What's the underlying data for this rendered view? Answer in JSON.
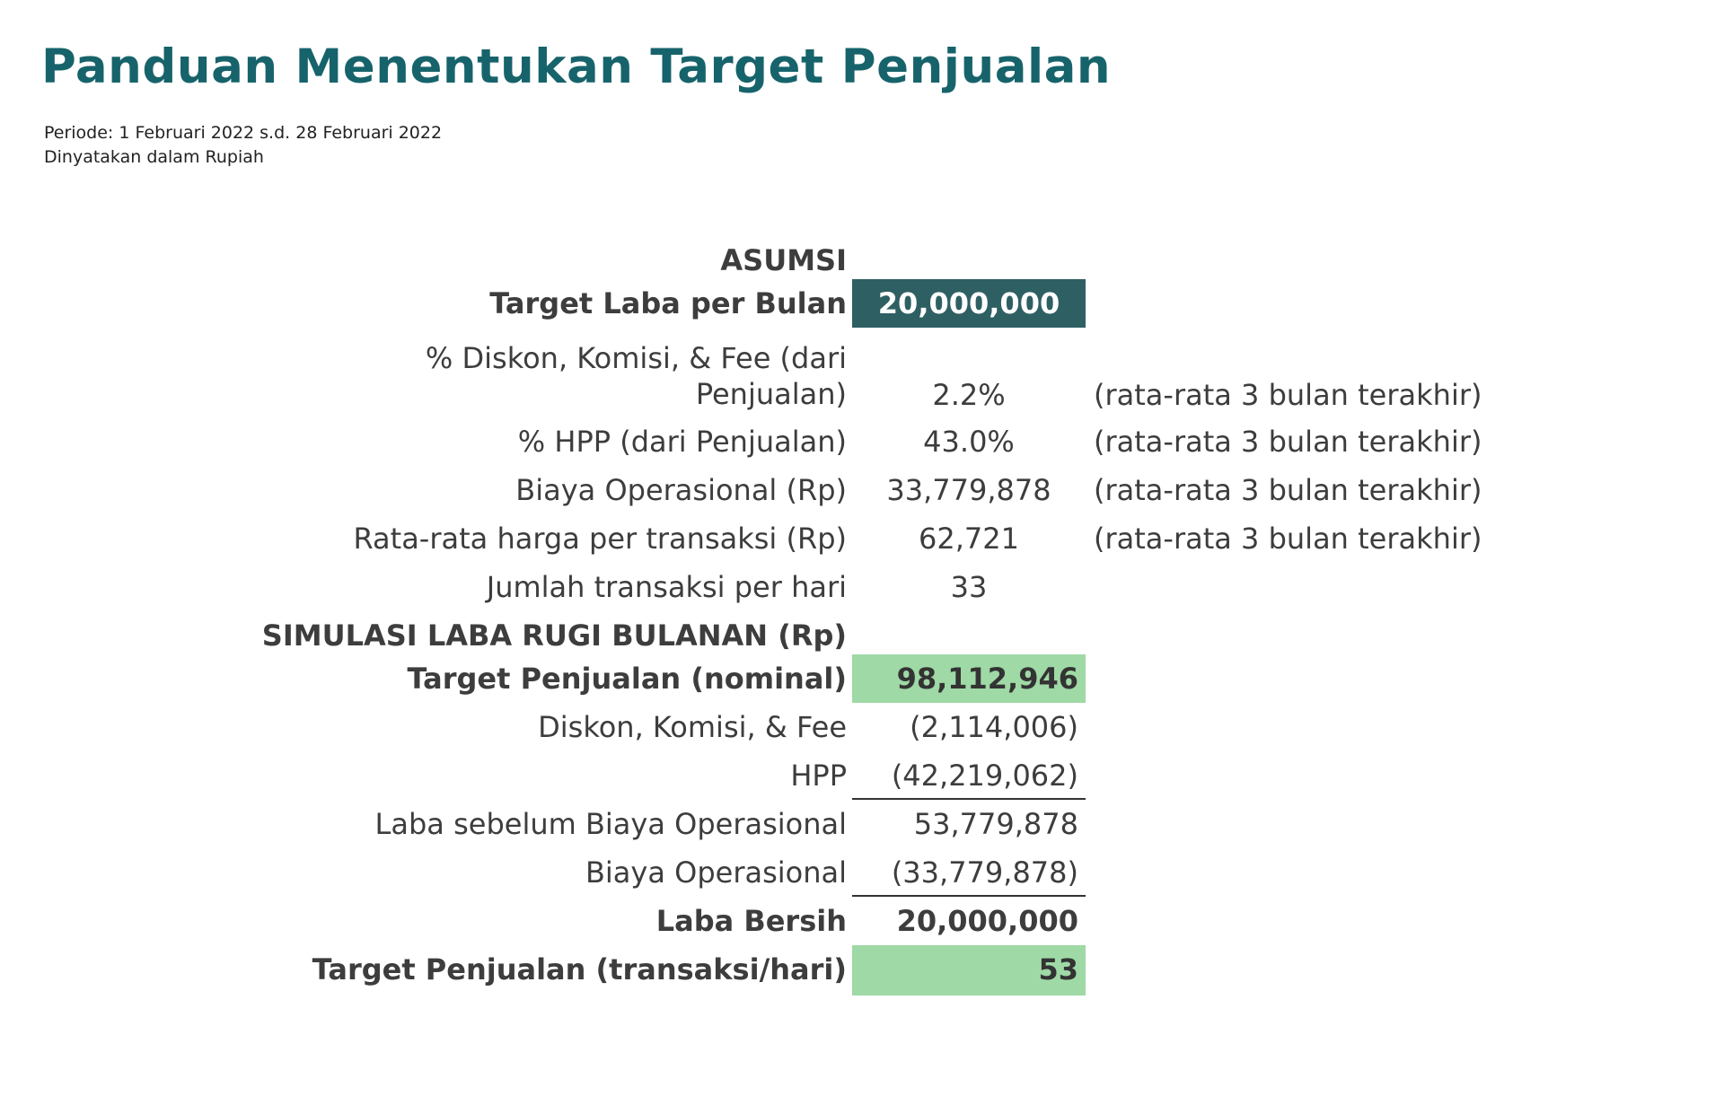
{
  "header": {
    "title": "Panduan Menentukan Target Penjualan",
    "period": "Periode: 1 Februari 2022 s.d. 28 Februari 2022",
    "currency_note": "Dinyatakan dalam Rupiah"
  },
  "asumsi": {
    "section_title": "ASUMSI",
    "target_laba": {
      "label": "Target Laba per Bulan",
      "value": "20,000,000"
    },
    "diskon": {
      "label_line1": "% Diskon, Komisi, & Fee (dari",
      "label_line2": "Penjualan)",
      "value": "2.2%",
      "note": "(rata-rata 3 bulan terakhir)"
    },
    "hpp": {
      "label": "% HPP (dari Penjualan)",
      "value": "43.0%",
      "note": "(rata-rata 3 bulan terakhir)"
    },
    "biaya_operasional": {
      "label": "Biaya Operasional (Rp)",
      "value": "33,779,878",
      "note": "(rata-rata 3 bulan terakhir)"
    },
    "harga_per_transaksi": {
      "label": "Rata-rata harga per transaksi (Rp)",
      "value": "62,721",
      "note": "(rata-rata 3 bulan terakhir)"
    },
    "jumlah_transaksi": {
      "label": "Jumlah transaksi per hari",
      "value": "33"
    }
  },
  "simulasi": {
    "section_title": "SIMULASI LABA RUGI BULANAN (Rp)",
    "target_penjualan": {
      "label": "Target Penjualan (nominal)",
      "value": "98,112,946"
    },
    "diskon": {
      "label": "Diskon, Komisi, & Fee",
      "value": "(2,114,006)"
    },
    "hpp": {
      "label": "HPP",
      "value": "(42,219,062)"
    },
    "laba_sebelum": {
      "label": "Laba sebelum Biaya Operasional",
      "value": "53,779,878"
    },
    "biaya_operasional": {
      "label": "Biaya Operasional",
      "value": "(33,779,878)"
    },
    "laba_bersih": {
      "label": "Laba Bersih",
      "value": "20,000,000"
    },
    "target_transaksi": {
      "label": "Target Penjualan (transaksi/hari)",
      "value": "53"
    }
  },
  "colors": {
    "title": "#17636b",
    "target_laba_fill": "#2e5f63",
    "highlight_fill": "#9fd9a6",
    "text": "#3d3d3d"
  }
}
